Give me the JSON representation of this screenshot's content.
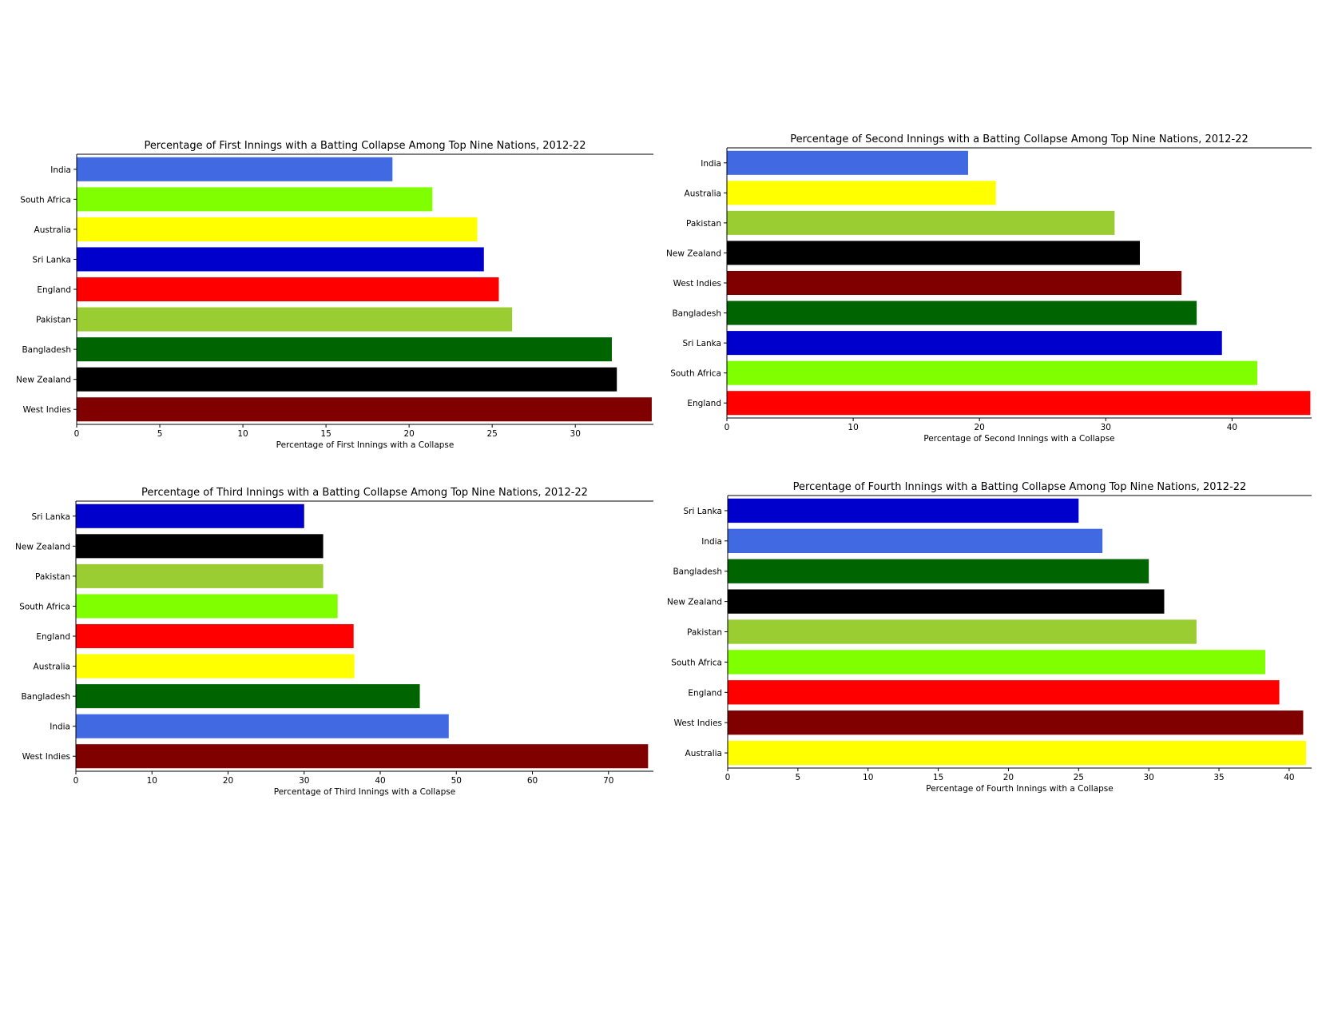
{
  "chart_data": [
    {
      "type": "bar",
      "orientation": "horizontal",
      "title": "Percentage of First Innings with a Batting Collapse Among Top Nine Nations, 2012-22",
      "xlabel": "Percentage of First Innings with a Collapse",
      "ylabel": "",
      "categories": [
        "India",
        "South Africa",
        "Australia",
        "Sri Lanka",
        "England",
        "Pakistan",
        "Bangladesh",
        "New Zealand",
        "West Indies"
      ],
      "values": [
        19.0,
        21.4,
        24.1,
        24.5,
        25.4,
        26.2,
        32.2,
        32.5,
        34.6
      ],
      "colors": [
        "#4169e1",
        "#7fff00",
        "#ffff00",
        "#0000cd",
        "#ff0000",
        "#9acd32",
        "#006400",
        "#000000",
        "#800000"
      ],
      "xlim": [
        0,
        34.7
      ],
      "xticks": [
        0,
        5,
        10,
        15,
        20,
        25,
        30
      ],
      "grid": false
    },
    {
      "type": "bar",
      "orientation": "horizontal",
      "title": "Percentage of Second Innings with a Batting Collapse Among Top Nine Nations, 2012-22",
      "xlabel": "Percentage of Second Innings with a Collapse",
      "ylabel": "",
      "categories": [
        "India",
        "Australia",
        "Pakistan",
        "New Zealand",
        "West Indies",
        "Bangladesh",
        "Sri Lanka",
        "South Africa",
        "England"
      ],
      "values": [
        19.1,
        21.3,
        30.7,
        32.7,
        36.0,
        37.2,
        39.2,
        42.0,
        46.2
      ],
      "colors": [
        "#4169e1",
        "#ffff00",
        "#9acd32",
        "#000000",
        "#800000",
        "#006400",
        "#0000cd",
        "#7fff00",
        "#ff0000"
      ],
      "xlim": [
        0,
        46.3
      ],
      "xticks": [
        0,
        10,
        20,
        30,
        40
      ],
      "grid": false
    },
    {
      "type": "bar",
      "orientation": "horizontal",
      "title": "Percentage of Third Innings with a Batting Collapse Among Top Nine Nations, 2012-22",
      "xlabel": "Percentage of Third Innings with a Collapse",
      "ylabel": "",
      "categories": [
        "Sri Lanka",
        "New Zealand",
        "Pakistan",
        "South Africa",
        "England",
        "Australia",
        "Bangladesh",
        "India",
        "West Indies"
      ],
      "values": [
        30.0,
        32.5,
        32.5,
        34.4,
        36.5,
        36.6,
        45.2,
        49.0,
        75.2
      ],
      "colors": [
        "#0000cd",
        "#000000",
        "#9acd32",
        "#7fff00",
        "#ff0000",
        "#ffff00",
        "#006400",
        "#4169e1",
        "#800000"
      ],
      "xlim": [
        0,
        75.9
      ],
      "xticks": [
        0,
        10,
        20,
        30,
        40,
        50,
        60,
        70
      ],
      "grid": false
    },
    {
      "type": "bar",
      "orientation": "horizontal",
      "title": "Percentage of Fourth Innings with a Batting Collapse Among Top Nine Nations, 2012-22",
      "xlabel": "Percentage of Fourth Innings with a Collapse",
      "ylabel": "",
      "categories": [
        "Sri Lanka",
        "India",
        "Bangladesh",
        "New Zealand",
        "Pakistan",
        "South Africa",
        "England",
        "West Indies",
        "Australia"
      ],
      "values": [
        25.0,
        26.7,
        30.0,
        31.1,
        33.4,
        38.3,
        39.3,
        41.0,
        41.2
      ],
      "colors": [
        "#0000cd",
        "#4169e1",
        "#006400",
        "#000000",
        "#9acd32",
        "#7fff00",
        "#ff0000",
        "#800000",
        "#ffff00"
      ],
      "xlim": [
        0,
        41.6
      ],
      "xticks": [
        0,
        5,
        10,
        15,
        20,
        25,
        30,
        35,
        40
      ],
      "grid": false
    }
  ]
}
